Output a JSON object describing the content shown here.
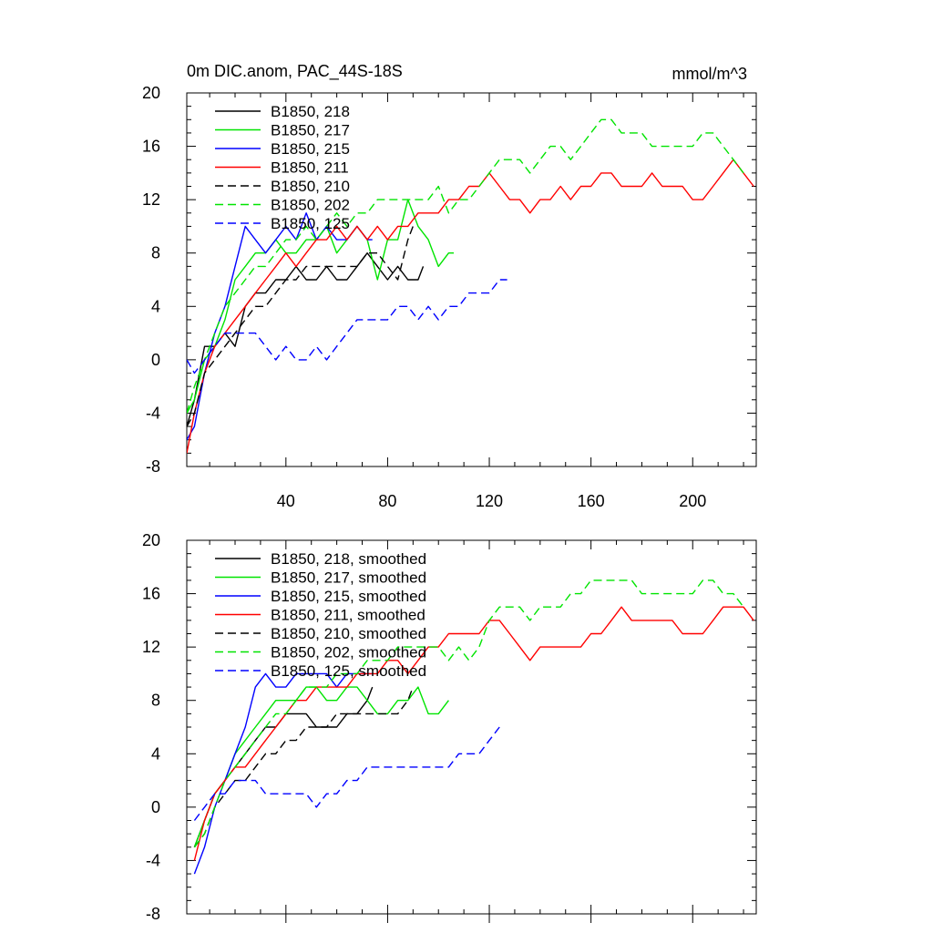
{
  "chart_data": [
    {
      "type": "line",
      "title": "0m DIC.anom, PAC_44S-18S",
      "units": "mmol/m^3",
      "xlim": [
        1,
        225
      ],
      "ylim": [
        -8,
        20
      ],
      "xticks": [
        40,
        80,
        120,
        160,
        200
      ],
      "yticks": [
        -8,
        -4,
        0,
        4,
        8,
        12,
        16,
        20
      ],
      "grid": false,
      "legend_position": "top-left",
      "series": [
        {
          "name": "B1850, 218",
          "color": "#000000",
          "dash": "solid",
          "x": [
            1,
            4,
            8,
            12,
            16,
            20,
            24,
            28,
            32,
            36,
            40,
            44,
            48,
            52,
            56,
            60,
            64,
            68,
            72,
            76,
            80,
            84,
            88,
            92,
            94
          ],
          "y": [
            -5,
            -3,
            1,
            1,
            2,
            1,
            4,
            5,
            5,
            6,
            6,
            7,
            6,
            6,
            7,
            6,
            6,
            7,
            8,
            7,
            6,
            7,
            6,
            6,
            7
          ]
        },
        {
          "name": "B1850, 217",
          "color": "#00e400",
          "dash": "solid",
          "x": [
            1,
            4,
            8,
            12,
            16,
            20,
            24,
            28,
            32,
            36,
            40,
            44,
            48,
            52,
            56,
            60,
            64,
            68,
            72,
            76,
            80,
            84,
            88,
            92,
            96,
            100,
            104,
            106
          ],
          "y": [
            -4,
            -3,
            0,
            1,
            3,
            6,
            7,
            8,
            8,
            9,
            8,
            8,
            9,
            9,
            10,
            8,
            9,
            10,
            9,
            6,
            9,
            9,
            12,
            10,
            9,
            7,
            8,
            8
          ]
        },
        {
          "name": "B1850, 215",
          "color": "#0000ff",
          "dash": "solid",
          "x": [
            1,
            4,
            8,
            12,
            16,
            20,
            24,
            28,
            32,
            36,
            40,
            44,
            48,
            52,
            56,
            60,
            64,
            68,
            72,
            74
          ],
          "y": [
            -6,
            -5,
            -1,
            2,
            4,
            7,
            10,
            9,
            8,
            9,
            10,
            9,
            11,
            9,
            10,
            9,
            9,
            10,
            9,
            9
          ]
        },
        {
          "name": "B1850, 211",
          "color": "#ff0000",
          "dash": "solid",
          "x": [
            1,
            4,
            8,
            12,
            16,
            20,
            24,
            28,
            32,
            36,
            40,
            44,
            48,
            52,
            56,
            60,
            64,
            68,
            72,
            76,
            80,
            84,
            88,
            92,
            96,
            100,
            104,
            108,
            112,
            116,
            120,
            124,
            128,
            132,
            136,
            140,
            144,
            148,
            152,
            156,
            160,
            164,
            168,
            172,
            176,
            180,
            184,
            188,
            192,
            196,
            200,
            204,
            208,
            212,
            216,
            220,
            224
          ],
          "y": [
            -7,
            -4,
            -1,
            1,
            2,
            3,
            4,
            5,
            6,
            7,
            8,
            7,
            8,
            9,
            9,
            10,
            9,
            10,
            9,
            10,
            9,
            10,
            10,
            11,
            11,
            11,
            12,
            12,
            13,
            13,
            14,
            13,
            12,
            12,
            11,
            12,
            12,
            13,
            12,
            13,
            13,
            14,
            14,
            13,
            13,
            13,
            14,
            13,
            13,
            13,
            12,
            12,
            13,
            14,
            15,
            14,
            13
          ]
        },
        {
          "name": "B1850, 210",
          "color": "#000000",
          "dash": "dashed",
          "x": [
            1,
            4,
            8,
            12,
            16,
            20,
            24,
            28,
            32,
            36,
            40,
            44,
            48,
            52,
            56,
            60,
            64,
            68,
            72,
            76,
            80,
            84,
            88,
            90
          ],
          "y": [
            -5,
            -4,
            -1,
            0,
            1,
            2,
            3,
            4,
            4,
            5,
            6,
            6,
            7,
            7,
            7,
            7,
            7,
            7,
            8,
            8,
            7,
            6,
            9,
            10
          ]
        },
        {
          "name": "B1850, 202",
          "color": "#00e400",
          "dash": "dashed",
          "x": [
            1,
            4,
            8,
            12,
            16,
            20,
            24,
            28,
            32,
            36,
            40,
            44,
            48,
            52,
            56,
            60,
            64,
            68,
            72,
            76,
            80,
            84,
            88,
            92,
            96,
            100,
            104,
            108,
            112,
            116,
            120,
            124,
            128,
            132,
            136,
            140,
            144,
            148,
            152,
            156,
            160,
            164,
            168,
            172,
            176,
            180,
            184,
            188,
            192,
            196,
            200,
            204,
            208,
            212,
            216,
            220
          ],
          "y": [
            -4,
            -2,
            0,
            2,
            4,
            5,
            6,
            7,
            7,
            8,
            9,
            9,
            10,
            9,
            10,
            11,
            10,
            11,
            11,
            12,
            12,
            12,
            12,
            12,
            12,
            13,
            11,
            12,
            12,
            13,
            14,
            15,
            15,
            15,
            14,
            15,
            16,
            16,
            15,
            16,
            17,
            18,
            18,
            17,
            17,
            17,
            16,
            16,
            16,
            16,
            16,
            17,
            17,
            16,
            15,
            14
          ]
        },
        {
          "name": "B1850, 125",
          "color": "#0000ff",
          "dash": "dashed",
          "x": [
            1,
            4,
            8,
            12,
            16,
            20,
            24,
            28,
            32,
            36,
            40,
            44,
            48,
            52,
            56,
            60,
            64,
            68,
            72,
            76,
            80,
            84,
            88,
            92,
            96,
            100,
            104,
            108,
            112,
            116,
            120,
            124,
            127
          ],
          "y": [
            0,
            -1,
            0,
            1,
            2,
            2,
            2,
            2,
            1,
            0,
            1,
            0,
            0,
            1,
            0,
            1,
            2,
            3,
            3,
            3,
            3,
            4,
            4,
            3,
            4,
            3,
            4,
            4,
            5,
            5,
            5,
            6,
            6
          ]
        }
      ]
    },
    {
      "type": "line",
      "title": "",
      "xlim": [
        1,
        225
      ],
      "ylim": [
        -8,
        20
      ],
      "yticks": [
        -8,
        -4,
        0,
        4,
        8,
        12,
        16,
        20
      ],
      "grid": false,
      "legend_position": "top-left",
      "series": [
        {
          "name": "B1850, 218, smoothed",
          "color": "#000000",
          "dash": "solid",
          "x": [
            4,
            8,
            12,
            16,
            20,
            24,
            28,
            32,
            36,
            40,
            44,
            48,
            52,
            56,
            60,
            64,
            68,
            72,
            74
          ],
          "y": [
            -3,
            -1,
            1,
            2,
            3,
            4,
            5,
            6,
            6,
            7,
            7,
            7,
            6,
            6,
            6,
            7,
            7,
            8,
            9
          ]
        },
        {
          "name": "B1850, 217, smoothed",
          "color": "#00e400",
          "dash": "solid",
          "x": [
            4,
            8,
            12,
            16,
            20,
            24,
            28,
            32,
            36,
            40,
            44,
            48,
            52,
            56,
            60,
            64,
            68,
            72,
            76,
            80,
            84,
            88,
            92,
            96,
            100,
            104
          ],
          "y": [
            -3,
            -1,
            1,
            2,
            4,
            5,
            6,
            7,
            8,
            8,
            8,
            9,
            9,
            8,
            8,
            9,
            9,
            8,
            7,
            7,
            8,
            8,
            9,
            7,
            7,
            8
          ]
        },
        {
          "name": "B1850, 215, smoothed",
          "color": "#0000ff",
          "dash": "solid",
          "x": [
            4,
            8,
            12,
            16,
            20,
            24,
            28,
            32,
            36,
            40,
            44,
            48,
            52,
            56,
            60,
            64,
            68,
            72,
            74
          ],
          "y": [
            -5,
            -3,
            0,
            2,
            4,
            6,
            9,
            10,
            9,
            9,
            10,
            10,
            10,
            10,
            9,
            10,
            10,
            10,
            10
          ]
        },
        {
          "name": "B1850, 211, smoothed",
          "color": "#ff0000",
          "dash": "solid",
          "x": [
            4,
            8,
            12,
            16,
            20,
            24,
            28,
            32,
            36,
            40,
            44,
            48,
            52,
            56,
            60,
            64,
            68,
            72,
            76,
            80,
            84,
            88,
            92,
            96,
            100,
            104,
            108,
            112,
            116,
            120,
            124,
            128,
            132,
            136,
            140,
            144,
            148,
            152,
            156,
            160,
            164,
            168,
            172,
            176,
            180,
            184,
            188,
            192,
            196,
            200,
            204,
            208,
            212,
            216,
            220,
            224
          ],
          "y": [
            -4,
            -1,
            1,
            2,
            3,
            3,
            4,
            5,
            6,
            7,
            8,
            8,
            9,
            9,
            9,
            9,
            10,
            10,
            10,
            11,
            11,
            10,
            11,
            12,
            12,
            13,
            13,
            13,
            13,
            14,
            14,
            13,
            12,
            11,
            12,
            12,
            12,
            12,
            12,
            13,
            13,
            14,
            15,
            14,
            14,
            14,
            14,
            14,
            13,
            13,
            13,
            14,
            15,
            15,
            15,
            14
          ]
        },
        {
          "name": "B1850, 210, smoothed",
          "color": "#000000",
          "dash": "dashed",
          "x": [
            4,
            8,
            12,
            16,
            20,
            24,
            28,
            32,
            36,
            40,
            44,
            48,
            52,
            56,
            60,
            64,
            68,
            72,
            76,
            80,
            84,
            88,
            90
          ],
          "y": [
            -3,
            -2,
            0,
            1,
            2,
            2,
            3,
            4,
            4,
            5,
            5,
            6,
            6,
            6,
            7,
            7,
            7,
            7,
            7,
            7,
            7,
            8,
            9
          ]
        },
        {
          "name": "B1850, 202, smoothed",
          "color": "#00e400",
          "dash": "dashed",
          "x": [
            4,
            8,
            12,
            16,
            20,
            24,
            28,
            32,
            36,
            40,
            44,
            48,
            52,
            56,
            60,
            64,
            68,
            72,
            76,
            80,
            84,
            88,
            92,
            96,
            100,
            104,
            108,
            112,
            116,
            120,
            124,
            128,
            132,
            136,
            140,
            144,
            148,
            152,
            156,
            160,
            164,
            168,
            172,
            176,
            180,
            184,
            188,
            192,
            196,
            200,
            204,
            208,
            212,
            216,
            220
          ],
          "y": [
            -3,
            -2,
            0,
            2,
            3,
            4,
            5,
            6,
            7,
            7,
            8,
            9,
            9,
            9,
            10,
            10,
            10,
            11,
            11,
            11,
            12,
            12,
            12,
            12,
            12,
            11,
            12,
            11,
            12,
            14,
            15,
            15,
            15,
            14,
            15,
            15,
            15,
            16,
            16,
            17,
            17,
            17,
            17,
            17,
            16,
            16,
            16,
            16,
            16,
            16,
            17,
            17,
            16,
            16,
            15
          ]
        },
        {
          "name": "B1850, 125, smoothed",
          "color": "#0000ff",
          "dash": "dashed",
          "x": [
            4,
            8,
            12,
            16,
            20,
            24,
            28,
            32,
            36,
            40,
            44,
            48,
            52,
            56,
            60,
            64,
            68,
            72,
            76,
            80,
            84,
            88,
            92,
            96,
            100,
            104,
            108,
            112,
            116,
            120,
            124
          ],
          "y": [
            -1,
            0,
            1,
            1,
            2,
            2,
            2,
            1,
            1,
            1,
            1,
            1,
            0,
            1,
            1,
            2,
            2,
            3,
            3,
            3,
            3,
            3,
            3,
            3,
            3,
            3,
            4,
            4,
            4,
            5,
            6
          ]
        }
      ]
    }
  ]
}
